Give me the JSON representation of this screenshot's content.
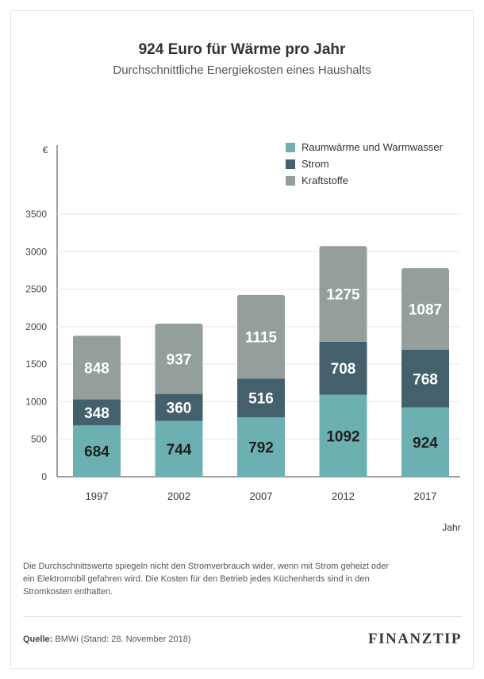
{
  "chart_data": {
    "type": "bar",
    "stacked": true,
    "title": "924 Euro für Wärme pro Jahr",
    "subtitle": "Durchschnittliche Energiekosten eines Haushalts",
    "ylabel": "€",
    "xlabel": "Jahr",
    "ylim": [
      0,
      3500
    ],
    "yticks": [
      0,
      500,
      1000,
      1500,
      2000,
      2500,
      3000,
      3500
    ],
    "grid": true,
    "legend_position": "top-right",
    "categories": [
      "1997",
      "2002",
      "2007",
      "2012",
      "2017"
    ],
    "series": [
      {
        "name": "Raumwärme und Warmwasser",
        "color": "#6cb0b2",
        "values": [
          684,
          744,
          792,
          1092,
          924
        ]
      },
      {
        "name": "Strom",
        "color": "#45606d",
        "values": [
          348,
          360,
          516,
          708,
          768
        ]
      },
      {
        "name": "Kraftstoffe",
        "color": "#939e9d",
        "values": [
          848,
          937,
          1115,
          1275,
          1087
        ]
      }
    ]
  },
  "note": "Die Durchschnittswerte spiegeln nicht den Stromverbrauch wider, wenn mit Strom geheizt oder ein Elektromobil gefahren wird. Die Kosten für den Betrieb jedes Küchenherds sind in den Stromkosten enthalten.",
  "source": {
    "label": "Quelle:",
    "text": "BMWi (Stand: 28. November 2018)"
  },
  "logo": "FINANZTIP"
}
